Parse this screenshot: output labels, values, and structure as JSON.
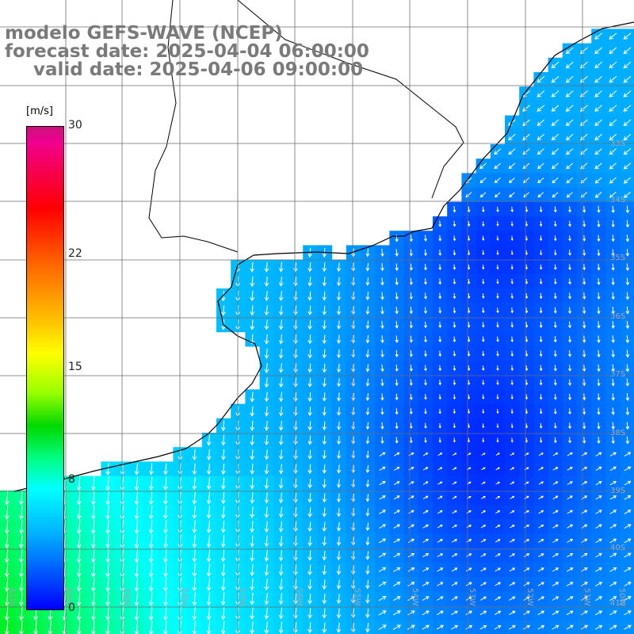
{
  "header": {
    "line1": "modelo GEFS-WAVE (NCEP)",
    "line2": "forecast date: 2025-04-04 06:00:00",
    "line3": "valid date: 2025-04-06 09:00:00"
  },
  "colorbar": {
    "units": "[m/s]",
    "ticks": [
      "30",
      "22",
      "15",
      "8",
      "0"
    ],
    "tick_values": [
      30,
      22,
      15,
      8,
      0
    ],
    "range": [
      0,
      30
    ]
  },
  "lat_labels": [
    "33S",
    "34S",
    "35S",
    "36S",
    "37S",
    "38S",
    "39S",
    "40S",
    "41S"
  ],
  "lon_labels": [
    "61W",
    "60W",
    "59W",
    "58W",
    "57W",
    "56W",
    "55W",
    "54W",
    "53W",
    "52W",
    "51W",
    "50W"
  ],
  "colors": {
    "land": "#ffffff",
    "grid": "#6e6e6e",
    "coast": "#000000",
    "arrows": "#ffffff",
    "label_gray": "#7a7a7a"
  }
}
